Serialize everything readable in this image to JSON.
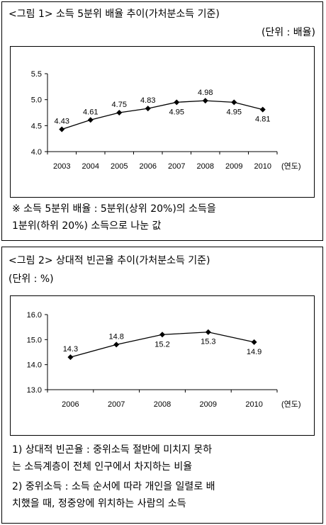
{
  "figure1": {
    "title": "<그림 1> 소득 5분위 배율 추이(가처분소득 기준)",
    "unit": "(단위 : 배율)",
    "note_line1": "※ 소득 5분위 배율 : 5분위(상위 20%)의 소득을",
    "note_line2": "1분위(하위 20%) 소득으로 나눈 값"
  },
  "figure2": {
    "title": "<그림 2> 상대적 빈곤율 추이(가처분소득 기준)",
    "unit": "(단위 : %)",
    "note1_line1": "1) 상대적 빈곤율 : 중위소득 절반에 미치지 못하",
    "note1_line2": "는 소득계층이 전체 인구에서 차지하는 비율",
    "note2_line1": "2) 중위소득 : 소득 순서에 따라 개인을 일렬로 배",
    "note2_line2": "치했을 때, 정중앙에 위치하는 사람의 소득"
  },
  "chart_data": [
    {
      "type": "line",
      "categories": [
        "2003",
        "2004",
        "2005",
        "2006",
        "2007",
        "2008",
        "2009",
        "2010"
      ],
      "values": [
        4.43,
        4.61,
        4.75,
        4.83,
        4.95,
        4.98,
        4.95,
        4.81
      ],
      "value_labels": [
        "4.43",
        "4.61",
        "4.75",
        "4.83",
        "4.95",
        "4.98",
        "4.95",
        "4.81"
      ],
      "yticks": [
        "5.5",
        "5.0",
        "4.5",
        "4.0"
      ],
      "ylim": [
        4.0,
        5.5
      ],
      "xlabel": "(연도)",
      "ylabel": "",
      "grid": false,
      "color": "#000000"
    },
    {
      "type": "line",
      "categories": [
        "2006",
        "2007",
        "2008",
        "2009",
        "2010"
      ],
      "values": [
        14.3,
        14.8,
        15.2,
        15.3,
        14.9
      ],
      "value_labels": [
        "14.3",
        "14.8",
        "15.2",
        "15.3",
        "14.9"
      ],
      "yticks": [
        "16.0",
        "15.0",
        "14.0",
        "13.0"
      ],
      "ylim": [
        13.0,
        16.0
      ],
      "xlabel": "(연도)",
      "ylabel": "",
      "grid": false,
      "color": "#000000"
    }
  ]
}
